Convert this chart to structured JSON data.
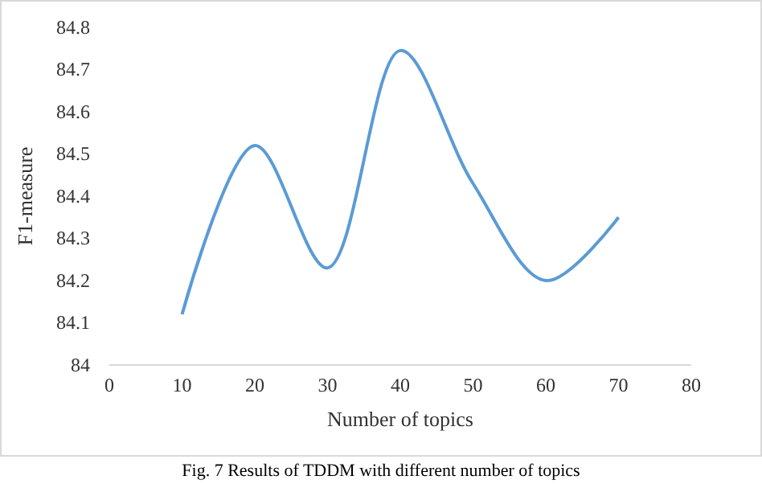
{
  "chart_data": {
    "type": "line",
    "xlabel": "Number of topics",
    "ylabel": "F1-measure",
    "annotations": [
      "Fig. 7 Results of TDDM with different number of topics"
    ],
    "x": [
      10,
      20,
      30,
      40,
      50,
      60,
      70
    ],
    "series": [
      {
        "color": "#5b9bd5",
        "values": [
          84.12,
          84.52,
          84.23,
          84.745,
          84.43,
          84.2,
          84.35
        ]
      }
    ],
    "xlim": [
      0,
      80
    ],
    "xticks": [
      0,
      10,
      20,
      30,
      40,
      50,
      60,
      70,
      80
    ],
    "ylim": [
      84,
      84.8
    ],
    "yticks": [
      84,
      84.1,
      84.2,
      84.3,
      84.4,
      84.5,
      84.6,
      84.7,
      84.8
    ],
    "grid": false,
    "marker": "none",
    "line_style": "solid"
  }
}
